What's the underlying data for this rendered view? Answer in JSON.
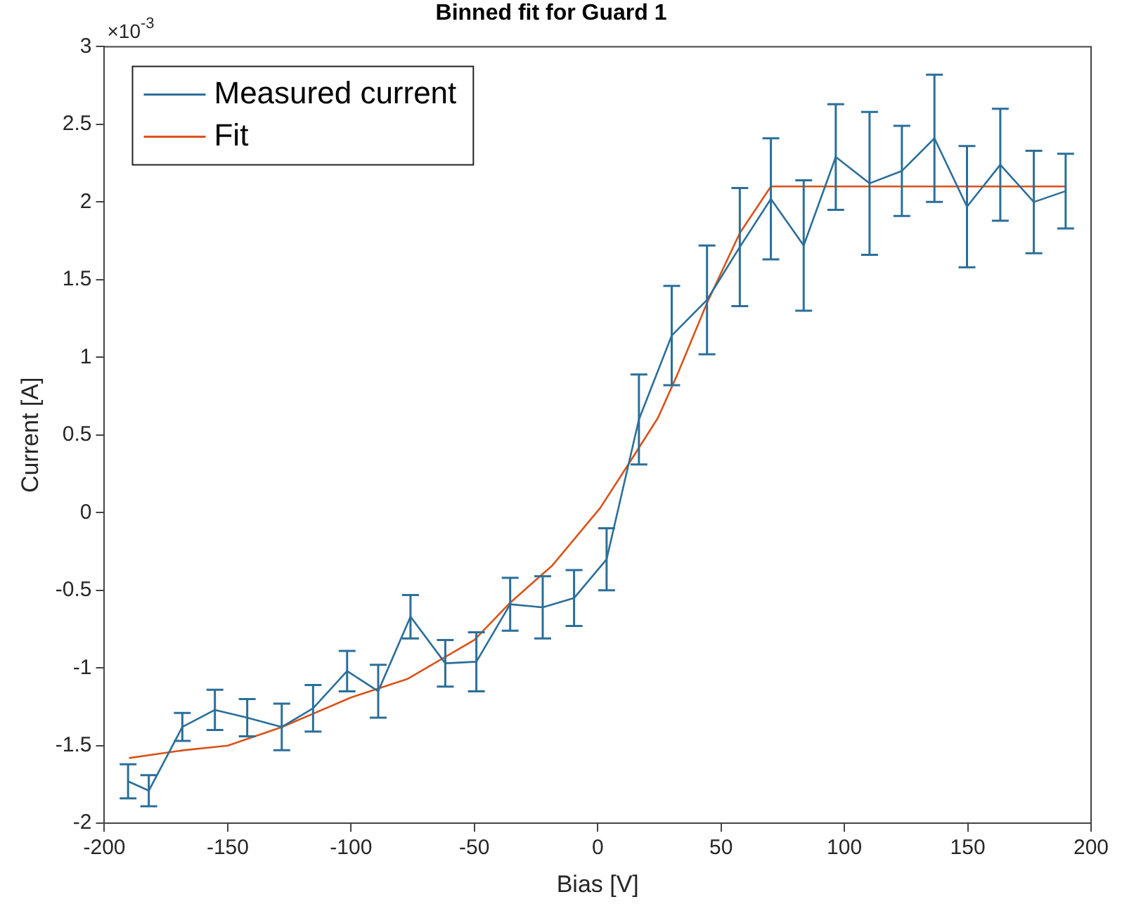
{
  "chart_data": {
    "type": "line",
    "title": "Binned fit for Guard 1",
    "xlabel": "Bias [V]",
    "ylabel": "Current [A]",
    "annotations": [
      "×10$^{-3}$"
    ],
    "xlim": [
      -200,
      200
    ],
    "xticks": [
      -200,
      -150,
      -100,
      -50,
      0,
      50,
      100,
      150,
      200
    ],
    "ylim": [
      -2,
      3
    ],
    "yticks": [
      -2,
      -1.5,
      -1,
      -0.5,
      0,
      0.5,
      1,
      1.5,
      2,
      2.5,
      3
    ],
    "grid": false,
    "legend": "top left",
    "marker": "none",
    "line_style": "solid",
    "series": [
      {
        "name": "Measured current",
        "color": "#2b6f99",
        "x": [
          -190.4,
          -182,
          -168.4,
          -155.2,
          -142.1,
          -128.1,
          -115.4,
          -101.6,
          -89,
          -75.9,
          -61.8,
          -49.2,
          -35.5,
          -22.3,
          -9.6,
          3.6,
          16.7,
          30,
          44.3,
          57.6,
          70.2,
          83.5,
          96.5,
          110.2,
          123.3,
          136.5,
          149.7,
          163.2,
          176.8,
          189.7
        ],
        "values": [
          -1.73,
          -1.79,
          -1.38,
          -1.27,
          -1.32,
          -1.38,
          -1.26,
          -1.02,
          -1.15,
          -0.67,
          -0.97,
          -0.96,
          -0.59,
          -0.61,
          -0.55,
          -0.3,
          0.6,
          1.14,
          1.37,
          1.71,
          2.02,
          1.72,
          2.29,
          2.12,
          2.2,
          2.41,
          1.97,
          2.24,
          2,
          2.07
        ],
        "errors": [
          0.11,
          0.1,
          0.09,
          0.13,
          0.12,
          0.15,
          0.15,
          0.13,
          0.17,
          0.14,
          0.15,
          0.19,
          0.17,
          0.2,
          0.18,
          0.2,
          0.29,
          0.32,
          0.35,
          0.38,
          0.39,
          0.42,
          0.34,
          0.46,
          0.29,
          0.41,
          0.39,
          0.36,
          0.33,
          0.24
        ]
      },
      {
        "name": "Fit",
        "color": "#d95319",
        "x": [
          -190,
          -168,
          -150,
          -128,
          -100,
          -77,
          -50,
          -35.5,
          -18.4,
          1,
          12.8,
          24.4,
          32.3,
          44.3,
          57.6,
          70.2,
          190
        ],
        "values": [
          -1.58,
          -1.53,
          -1.5,
          -1.38,
          -1.19,
          -1.07,
          -0.82,
          -0.58,
          -0.34,
          0.03,
          0.32,
          0.61,
          0.89,
          1.35,
          1.8,
          2.1,
          2.1
        ]
      }
    ]
  }
}
